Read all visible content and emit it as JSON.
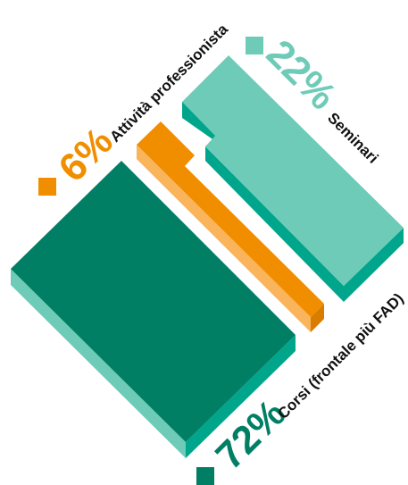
{
  "chart_data": {
    "type": "pie",
    "title": "",
    "series": [
      {
        "name": "",
        "values": [
          22,
          6,
          72
        ]
      }
    ],
    "categories": [
      "Seminari",
      "Attività professionista",
      "Corsi (frontale più FAD)"
    ],
    "slices": [
      {
        "label": "Seminari",
        "value": 22,
        "percent_label": "22%",
        "color_top": "#6ecbb8",
        "color_side": "#00a68b",
        "color_front": "#00a68b"
      },
      {
        "label": "Attività professionista",
        "value": 6,
        "percent_label": "6%",
        "color_top": "#f18e00",
        "color_side": "#f9b45c",
        "color_front": "#d97d00"
      },
      {
        "label": "Corsi (frontale più FAD)",
        "value": 72,
        "percent_label": "72%",
        "color_top": "#007f64",
        "color_side": "#6ecbb8",
        "color_front": "#00a68b"
      }
    ]
  }
}
